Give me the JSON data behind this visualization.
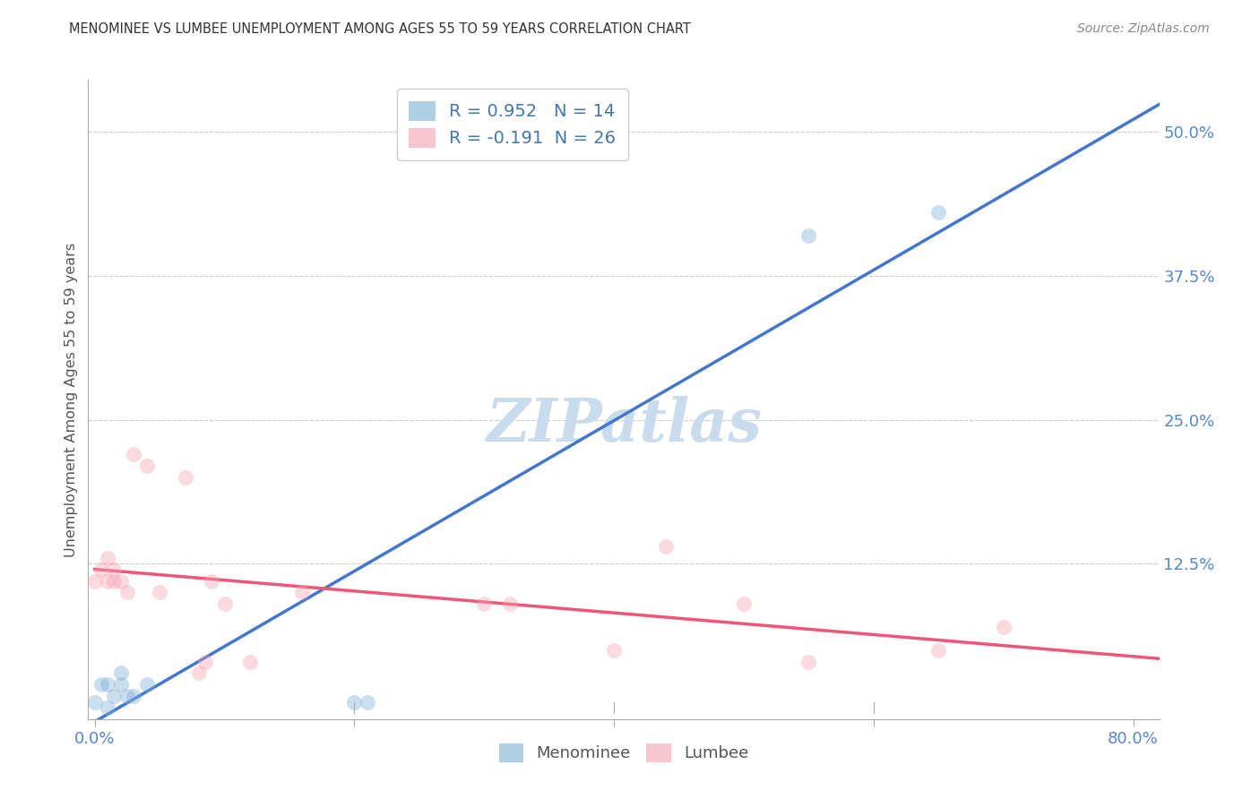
{
  "title": "MENOMINEE VS LUMBEE UNEMPLOYMENT AMONG AGES 55 TO 59 YEARS CORRELATION CHART",
  "source": "Source: ZipAtlas.com",
  "ylabel": "Unemployment Among Ages 55 to 59 years",
  "xlim": [
    -0.005,
    0.82
  ],
  "ylim": [
    -0.01,
    0.545
  ],
  "xticks": [
    0.0,
    0.2,
    0.4,
    0.6,
    0.8
  ],
  "xticklabels": [
    "0.0%",
    "",
    "",
    "",
    "80.0%"
  ],
  "yticks": [
    0.0,
    0.125,
    0.25,
    0.375,
    0.5
  ],
  "yticklabels": [
    "",
    "12.5%",
    "25.0%",
    "37.5%",
    "50.0%"
  ],
  "menominee_R": 0.952,
  "menominee_N": 14,
  "lumbee_R": -0.191,
  "lumbee_N": 26,
  "menominee_color": "#7BAFD4",
  "lumbee_color": "#F4A0B0",
  "menominee_line_color": "#4477CC",
  "lumbee_line_color": "#EE5577",
  "menominee_x": [
    0.0,
    0.005,
    0.01,
    0.01,
    0.015,
    0.02,
    0.02,
    0.025,
    0.03,
    0.04,
    0.2,
    0.21,
    0.55,
    0.65
  ],
  "menominee_y": [
    0.005,
    0.02,
    0.0,
    0.02,
    0.01,
    0.02,
    0.03,
    0.01,
    0.01,
    0.02,
    0.005,
    0.005,
    0.41,
    0.43
  ],
  "lumbee_x": [
    0.0,
    0.005,
    0.01,
    0.01,
    0.015,
    0.015,
    0.02,
    0.025,
    0.03,
    0.04,
    0.05,
    0.07,
    0.08,
    0.085,
    0.09,
    0.1,
    0.12,
    0.16,
    0.3,
    0.32,
    0.4,
    0.44,
    0.5,
    0.55,
    0.65,
    0.7
  ],
  "lumbee_y": [
    0.11,
    0.12,
    0.11,
    0.13,
    0.11,
    0.12,
    0.11,
    0.1,
    0.22,
    0.21,
    0.1,
    0.2,
    0.03,
    0.04,
    0.11,
    0.09,
    0.04,
    0.1,
    0.09,
    0.09,
    0.05,
    0.14,
    0.09,
    0.04,
    0.05,
    0.07
  ],
  "watermark": "ZIPatlas",
  "watermark_color": "#C8DCED",
  "background_color": "#FFFFFF",
  "grid_color": "#CCCCCC",
  "title_color": "#333333",
  "axis_tick_color": "#5588CC",
  "scatter_size": 150,
  "scatter_alpha": 0.4,
  "line_width": 2.5
}
